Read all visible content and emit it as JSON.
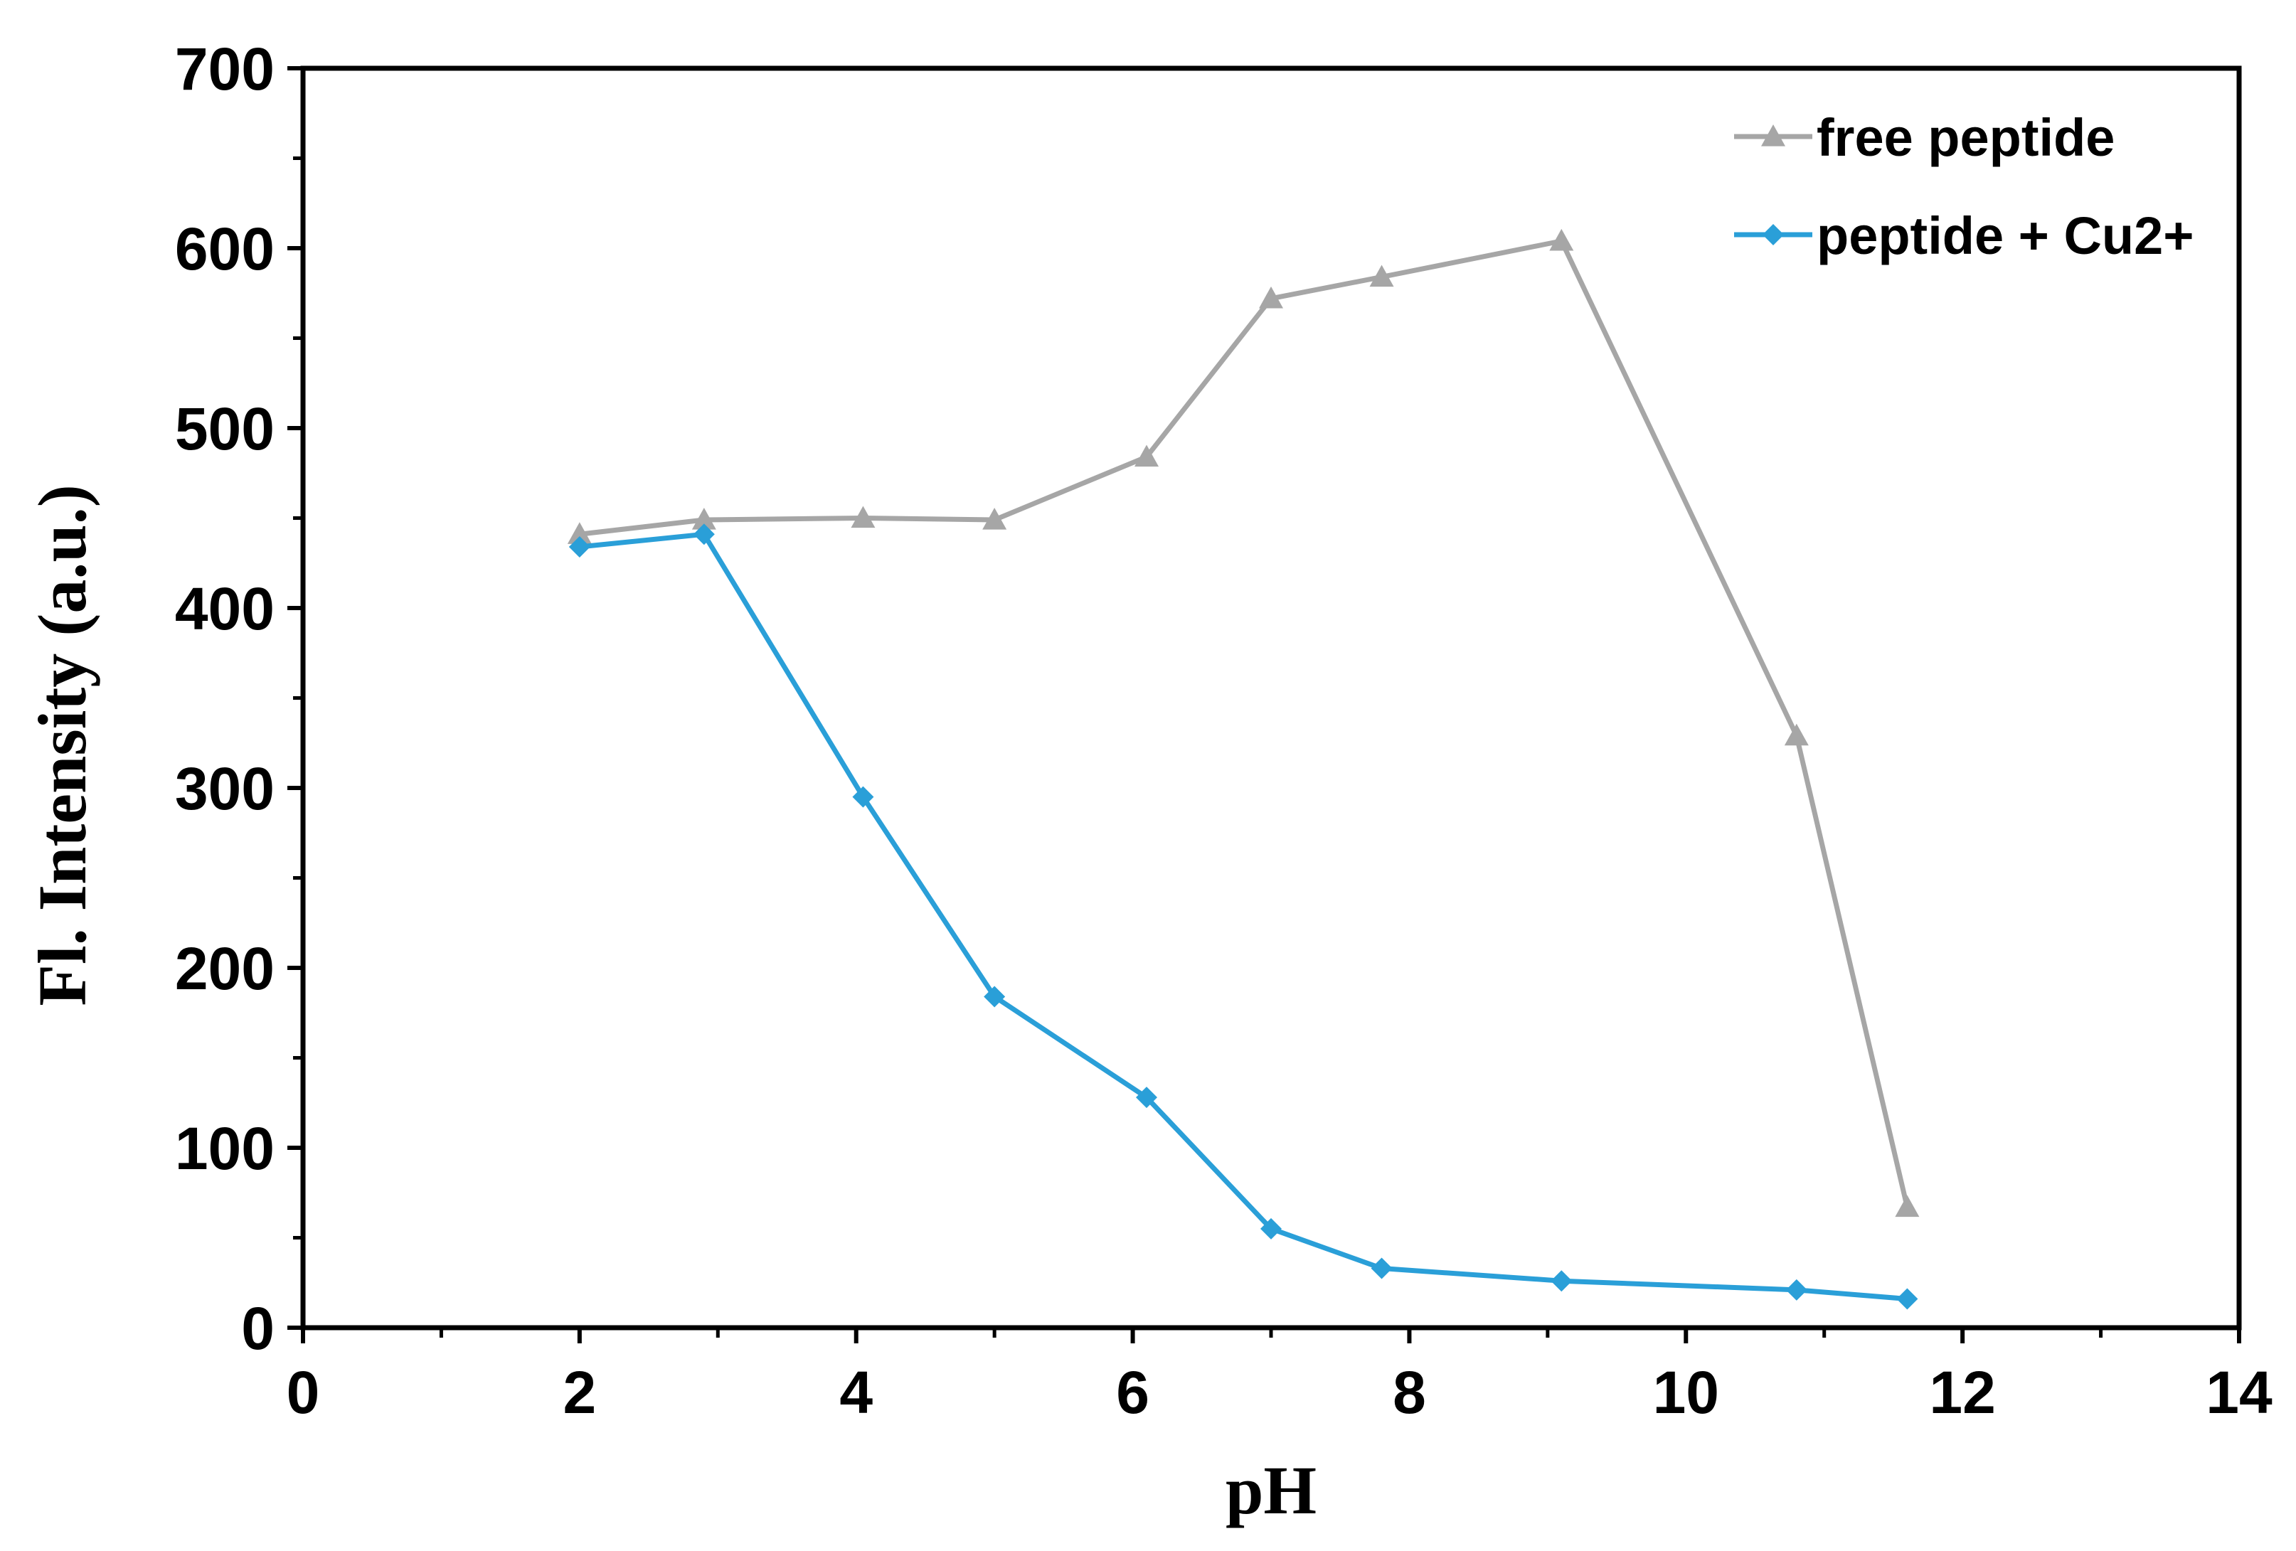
{
  "chart_data": {
    "type": "line",
    "xlabel": "pH",
    "ylabel": "Fl. Intensity (a.u.)",
    "xlim": [
      0,
      14
    ],
    "ylim": [
      0,
      700
    ],
    "x_ticks": [
      0,
      2,
      4,
      6,
      8,
      10,
      12,
      14
    ],
    "y_ticks": [
      0,
      100,
      200,
      300,
      400,
      500,
      600,
      700
    ],
    "grid": false,
    "legend_position": "top-right",
    "series": [
      {
        "name": "free peptide",
        "color": "#A6A6A6",
        "marker": "triangle",
        "x": [
          2.0,
          2.9,
          4.05,
          5.0,
          6.1,
          7.0,
          7.8,
          9.1,
          10.8,
          11.6
        ],
        "y": [
          441,
          449,
          450,
          449,
          484,
          572,
          584,
          604,
          329,
          67
        ]
      },
      {
        "name": "peptide + Cu2+",
        "color": "#2A9FD8",
        "marker": "diamond",
        "x": [
          2.0,
          2.9,
          4.05,
          5.0,
          6.1,
          7.0,
          7.8,
          9.1,
          10.8,
          11.6
        ],
        "y": [
          434,
          441,
          295,
          184,
          128,
          55,
          33,
          26,
          21,
          16
        ]
      }
    ]
  }
}
